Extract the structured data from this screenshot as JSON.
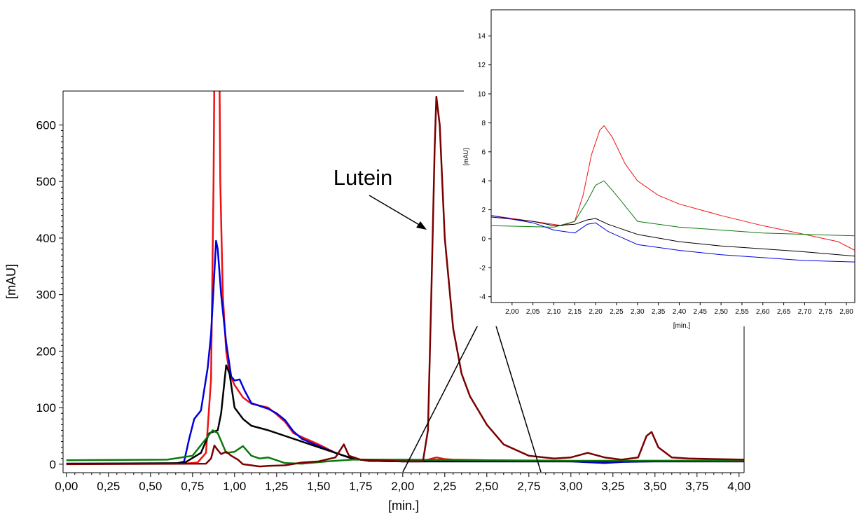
{
  "chart_data": [
    {
      "type": "line",
      "title": "",
      "xlabel": "[min.]",
      "ylabel": "[mAU]",
      "xlim": [
        -0.02,
        4.03
      ],
      "ylim": [
        -15,
        660
      ],
      "x_ticks": [
        "0,00",
        "0,25",
        "0,50",
        "0,75",
        "1,00",
        "1,25",
        "1,50",
        "1,75",
        "2,00",
        "2,25",
        "2,50",
        "2,75",
        "3,00",
        "3,25",
        "3,50",
        "3,75",
        "4,00"
      ],
      "y_ticks": [
        "0",
        "100",
        "200",
        "300",
        "400",
        "500",
        "600"
      ],
      "annotation": "Lutein",
      "colors": {
        "red": "#ee1111",
        "blue": "#0000dd",
        "black": "#000000",
        "green": "#0a7a0a",
        "darkred": "#7a0000"
      },
      "series": [
        {
          "color": "red",
          "points": [
            [
              0,
              1
            ],
            [
              0.7,
              1
            ],
            [
              0.78,
              3
            ],
            [
              0.83,
              20
            ],
            [
              0.86,
              150
            ],
            [
              0.875,
              500
            ],
            [
              0.88,
              700
            ],
            [
              0.91,
              700
            ],
            [
              0.915,
              500
            ],
            [
              0.93,
              300
            ],
            [
              0.95,
              200
            ],
            [
              0.97,
              160
            ],
            [
              1.0,
              140
            ],
            [
              1.05,
              118
            ],
            [
              1.1,
              107
            ],
            [
              1.2,
              100
            ],
            [
              1.25,
              88
            ],
            [
              1.3,
              75
            ],
            [
              1.35,
              55
            ],
            [
              1.4,
              48
            ],
            [
              1.5,
              35
            ],
            [
              1.6,
              20
            ],
            [
              1.7,
              10
            ],
            [
              1.8,
              6
            ],
            [
              2.0,
              5
            ],
            [
              2.1,
              5
            ],
            [
              2.15,
              8
            ],
            [
              2.2,
              12
            ],
            [
              2.25,
              9
            ],
            [
              2.3,
              8
            ],
            [
              2.5,
              7
            ],
            [
              2.8,
              6
            ],
            [
              3.0,
              5
            ],
            [
              3.5,
              6
            ],
            [
              4.03,
              6
            ]
          ]
        },
        {
          "color": "blue",
          "points": [
            [
              0,
              1
            ],
            [
              0.65,
              1
            ],
            [
              0.7,
              5
            ],
            [
              0.73,
              45
            ],
            [
              0.76,
              80
            ],
            [
              0.8,
              95
            ],
            [
              0.84,
              170
            ],
            [
              0.86,
              230
            ],
            [
              0.88,
              340
            ],
            [
              0.89,
              395
            ],
            [
              0.9,
              380
            ],
            [
              0.92,
              300
            ],
            [
              0.95,
              215
            ],
            [
              0.98,
              155
            ],
            [
              1.0,
              148
            ],
            [
              1.03,
              150
            ],
            [
              1.06,
              130
            ],
            [
              1.1,
              108
            ],
            [
              1.2,
              98
            ],
            [
              1.25,
              90
            ],
            [
              1.3,
              78
            ],
            [
              1.35,
              58
            ],
            [
              1.4,
              45
            ],
            [
              1.5,
              32
            ],
            [
              1.6,
              20
            ],
            [
              1.7,
              10
            ],
            [
              1.8,
              6
            ],
            [
              2.0,
              5
            ],
            [
              2.5,
              5
            ],
            [
              3.0,
              5
            ],
            [
              3.2,
              2
            ],
            [
              3.3,
              4
            ],
            [
              3.5,
              5
            ],
            [
              4.03,
              5
            ]
          ]
        },
        {
          "color": "black",
          "points": [
            [
              0,
              1
            ],
            [
              0.7,
              2
            ],
            [
              0.8,
              20
            ],
            [
              0.85,
              55
            ],
            [
              0.9,
              60
            ],
            [
              0.92,
              90
            ],
            [
              0.95,
              175
            ],
            [
              0.97,
              160
            ],
            [
              1.0,
              100
            ],
            [
              1.05,
              80
            ],
            [
              1.1,
              68
            ],
            [
              1.2,
              60
            ],
            [
              1.3,
              50
            ],
            [
              1.4,
              40
            ],
            [
              1.5,
              30
            ],
            [
              1.6,
              20
            ],
            [
              1.7,
              10
            ],
            [
              1.8,
              6
            ],
            [
              2.0,
              5
            ],
            [
              2.5,
              5
            ],
            [
              3.0,
              5
            ],
            [
              3.5,
              5
            ],
            [
              4.03,
              5
            ]
          ]
        },
        {
          "color": "green",
          "points": [
            [
              0,
              7
            ],
            [
              0.6,
              8
            ],
            [
              0.75,
              15
            ],
            [
              0.83,
              45
            ],
            [
              0.87,
              60
            ],
            [
              0.9,
              55
            ],
            [
              0.95,
              20
            ],
            [
              1.0,
              22
            ],
            [
              1.05,
              32
            ],
            [
              1.1,
              15
            ],
            [
              1.15,
              10
            ],
            [
              1.2,
              12
            ],
            [
              1.3,
              2
            ],
            [
              1.4,
              1
            ],
            [
              1.55,
              5
            ],
            [
              1.7,
              8
            ],
            [
              2.0,
              8
            ],
            [
              2.5,
              7
            ],
            [
              3.0,
              6
            ],
            [
              3.5,
              6
            ],
            [
              4.03,
              6
            ]
          ]
        },
        {
          "color": "darkred",
          "points": [
            [
              0,
              0
            ],
            [
              0.83,
              1
            ],
            [
              0.86,
              10
            ],
            [
              0.88,
              33
            ],
            [
              0.9,
              25
            ],
            [
              0.92,
              18
            ],
            [
              0.95,
              22
            ],
            [
              0.98,
              15
            ],
            [
              1.02,
              8
            ],
            [
              1.05,
              0
            ],
            [
              1.1,
              -2
            ],
            [
              1.15,
              -4
            ],
            [
              1.2,
              -3
            ],
            [
              1.3,
              -2
            ],
            [
              1.4,
              3
            ],
            [
              1.5,
              5
            ],
            [
              1.6,
              12
            ],
            [
              1.65,
              35
            ],
            [
              1.68,
              15
            ],
            [
              1.75,
              8
            ],
            [
              2.0,
              5
            ],
            [
              2.12,
              5
            ],
            [
              2.15,
              60
            ],
            [
              2.17,
              300
            ],
            [
              2.19,
              560
            ],
            [
              2.2,
              650
            ],
            [
              2.22,
              600
            ],
            [
              2.25,
              400
            ],
            [
              2.3,
              240
            ],
            [
              2.35,
              160
            ],
            [
              2.4,
              120
            ],
            [
              2.5,
              70
            ],
            [
              2.6,
              35
            ],
            [
              2.75,
              15
            ],
            [
              2.9,
              10
            ],
            [
              3.0,
              12
            ],
            [
              3.1,
              20
            ],
            [
              3.2,
              12
            ],
            [
              3.3,
              8
            ],
            [
              3.4,
              12
            ],
            [
              3.45,
              50
            ],
            [
              3.48,
              57
            ],
            [
              3.52,
              30
            ],
            [
              3.6,
              12
            ],
            [
              3.7,
              10
            ],
            [
              4.03,
              8
            ]
          ]
        }
      ]
    },
    {
      "type": "line",
      "title": "",
      "xlabel": "[min.]",
      "ylabel": "[mAU]",
      "xlim": [
        1.95,
        2.82
      ],
      "ylim": [
        -4.4,
        15.8
      ],
      "x_ticks": [
        "2,00",
        "2,05",
        "2,10",
        "2,15",
        "2,20",
        "2,25",
        "2,30",
        "2,35",
        "2,40",
        "2,45",
        "2,50",
        "2,55",
        "2,60",
        "2,65",
        "2,70",
        "2,75",
        "2,80"
      ],
      "y_ticks": [
        "-4",
        "-2",
        "0",
        "2",
        "4",
        "6",
        "8",
        "10",
        "12",
        "14"
      ],
      "series": [
        {
          "color": "red",
          "points": [
            [
              1.95,
              1.6
            ],
            [
              2.05,
              1.2
            ],
            [
              2.12,
              0.9
            ],
            [
              2.15,
              1.2
            ],
            [
              2.17,
              3.0
            ],
            [
              2.19,
              5.8
            ],
            [
              2.21,
              7.5
            ],
            [
              2.22,
              7.8
            ],
            [
              2.24,
              7.0
            ],
            [
              2.27,
              5.2
            ],
            [
              2.3,
              4.0
            ],
            [
              2.35,
              3.0
            ],
            [
              2.4,
              2.4
            ],
            [
              2.5,
              1.6
            ],
            [
              2.6,
              0.9
            ],
            [
              2.7,
              0.3
            ],
            [
              2.78,
              -0.2
            ],
            [
              2.82,
              -0.8
            ]
          ]
        },
        {
          "color": "green",
          "points": [
            [
              1.95,
              0.9
            ],
            [
              2.1,
              0.8
            ],
            [
              2.15,
              1.2
            ],
            [
              2.18,
              2.6
            ],
            [
              2.2,
              3.7
            ],
            [
              2.22,
              4.0
            ],
            [
              2.25,
              3.0
            ],
            [
              2.3,
              1.2
            ],
            [
              2.4,
              0.8
            ],
            [
              2.5,
              0.6
            ],
            [
              2.6,
              0.4
            ],
            [
              2.7,
              0.3
            ],
            [
              2.82,
              0.2
            ]
          ]
        },
        {
          "color": "black",
          "points": [
            [
              1.95,
              1.5
            ],
            [
              2.05,
              1.2
            ],
            [
              2.1,
              0.9
            ],
            [
              2.15,
              1.0
            ],
            [
              2.18,
              1.3
            ],
            [
              2.2,
              1.4
            ],
            [
              2.23,
              1.0
            ],
            [
              2.3,
              0.3
            ],
            [
              2.4,
              -0.2
            ],
            [
              2.5,
              -0.5
            ],
            [
              2.6,
              -0.7
            ],
            [
              2.7,
              -0.9
            ],
            [
              2.82,
              -1.2
            ]
          ]
        },
        {
          "color": "blue",
          "points": [
            [
              1.95,
              1.6
            ],
            [
              2.05,
              1.1
            ],
            [
              2.1,
              0.6
            ],
            [
              2.15,
              0.4
            ],
            [
              2.18,
              1.0
            ],
            [
              2.2,
              1.1
            ],
            [
              2.23,
              0.5
            ],
            [
              2.3,
              -0.4
            ],
            [
              2.4,
              -0.8
            ],
            [
              2.5,
              -1.1
            ],
            [
              2.6,
              -1.3
            ],
            [
              2.7,
              -1.5
            ],
            [
              2.82,
              -1.6
            ]
          ]
        }
      ]
    }
  ]
}
